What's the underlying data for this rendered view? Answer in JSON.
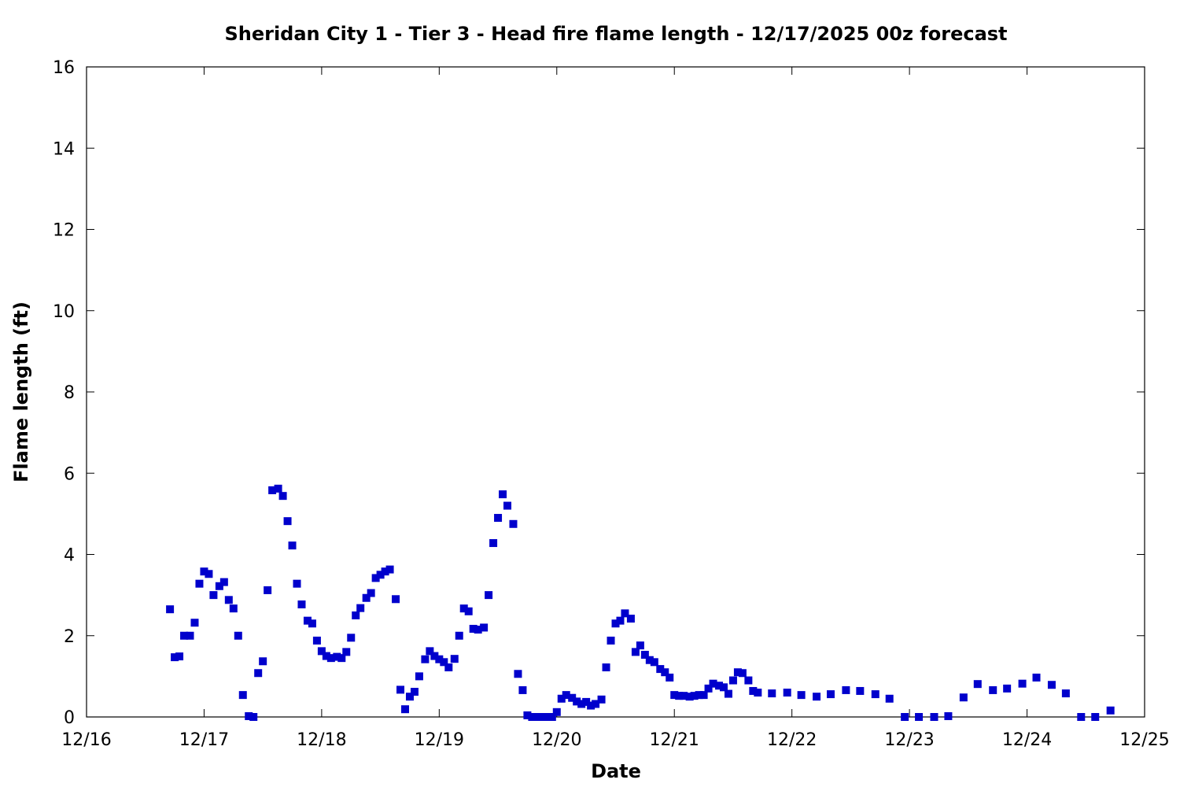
{
  "chart_data": {
    "type": "scatter",
    "title": "Sheridan City 1 - Tier 3 - Head fire flame length - 12/17/2025 00z forecast",
    "xlabel": "Date",
    "ylabel": "Flame length (ft)",
    "x_tick_labels": [
      "12/16",
      "12/17",
      "12/18",
      "12/19",
      "12/20",
      "12/21",
      "12/22",
      "12/23",
      "12/24",
      "12/25"
    ],
    "x_unit": "days after 12/16",
    "xlim": [
      0,
      9
    ],
    "ylim": [
      0,
      16
    ],
    "y_ticks": [
      0,
      2,
      4,
      6,
      8,
      10,
      12,
      14,
      16
    ],
    "grid": false,
    "marker_color": "#0000cc",
    "series": [
      {
        "points": [
          [
            0.71,
            2.65
          ],
          [
            0.75,
            1.47
          ],
          [
            0.79,
            1.49
          ],
          [
            0.83,
            2.0
          ],
          [
            0.88,
            2.0
          ],
          [
            0.92,
            2.32
          ],
          [
            0.96,
            3.28
          ],
          [
            1.0,
            3.58
          ],
          [
            1.04,
            3.52
          ],
          [
            1.08,
            3.0
          ],
          [
            1.13,
            3.22
          ],
          [
            1.17,
            3.32
          ],
          [
            1.21,
            2.88
          ],
          [
            1.25,
            2.67
          ],
          [
            1.29,
            2.0
          ],
          [
            1.33,
            0.54
          ],
          [
            1.38,
            0.02
          ],
          [
            1.42,
            0.0
          ],
          [
            1.46,
            1.08
          ],
          [
            1.5,
            1.37
          ],
          [
            1.54,
            3.12
          ],
          [
            1.58,
            5.58
          ],
          [
            1.63,
            5.62
          ],
          [
            1.67,
            5.44
          ],
          [
            1.71,
            4.82
          ],
          [
            1.75,
            4.22
          ],
          [
            1.79,
            3.28
          ],
          [
            1.83,
            2.77
          ],
          [
            1.88,
            2.37
          ],
          [
            1.92,
            2.3
          ],
          [
            1.96,
            1.88
          ],
          [
            2.0,
            1.62
          ],
          [
            2.04,
            1.5
          ],
          [
            2.08,
            1.45
          ],
          [
            2.13,
            1.48
          ],
          [
            2.17,
            1.45
          ],
          [
            2.21,
            1.6
          ],
          [
            2.25,
            1.95
          ],
          [
            2.29,
            2.5
          ],
          [
            2.33,
            2.68
          ],
          [
            2.38,
            2.93
          ],
          [
            2.42,
            3.05
          ],
          [
            2.46,
            3.42
          ],
          [
            2.5,
            3.5
          ],
          [
            2.54,
            3.58
          ],
          [
            2.58,
            3.63
          ],
          [
            2.63,
            2.9
          ],
          [
            2.67,
            0.67
          ],
          [
            2.71,
            0.19
          ],
          [
            2.75,
            0.5
          ],
          [
            2.79,
            0.62
          ],
          [
            2.83,
            1.0
          ],
          [
            2.88,
            1.42
          ],
          [
            2.92,
            1.62
          ],
          [
            2.96,
            1.5
          ],
          [
            3.0,
            1.42
          ],
          [
            3.04,
            1.35
          ],
          [
            3.08,
            1.22
          ],
          [
            3.13,
            1.43
          ],
          [
            3.17,
            2.0
          ],
          [
            3.21,
            2.67
          ],
          [
            3.25,
            2.6
          ],
          [
            3.29,
            2.17
          ],
          [
            3.33,
            2.15
          ],
          [
            3.38,
            2.2
          ],
          [
            3.42,
            3.0
          ],
          [
            3.46,
            4.28
          ],
          [
            3.5,
            4.9
          ],
          [
            3.54,
            5.48
          ],
          [
            3.58,
            5.2
          ],
          [
            3.63,
            4.75
          ],
          [
            3.67,
            1.06
          ],
          [
            3.71,
            0.66
          ],
          [
            3.75,
            0.04
          ],
          [
            3.79,
            0.0
          ],
          [
            3.83,
            0.0
          ],
          [
            3.88,
            0.0
          ],
          [
            3.92,
            0.0
          ],
          [
            3.96,
            0.0
          ],
          [
            4.0,
            0.12
          ],
          [
            4.04,
            0.45
          ],
          [
            4.08,
            0.54
          ],
          [
            4.13,
            0.47
          ],
          [
            4.17,
            0.38
          ],
          [
            4.21,
            0.32
          ],
          [
            4.25,
            0.37
          ],
          [
            4.29,
            0.28
          ],
          [
            4.33,
            0.32
          ],
          [
            4.38,
            0.43
          ],
          [
            4.42,
            1.22
          ],
          [
            4.46,
            1.88
          ],
          [
            4.5,
            2.3
          ],
          [
            4.54,
            2.37
          ],
          [
            4.58,
            2.55
          ],
          [
            4.63,
            2.42
          ],
          [
            4.67,
            1.6
          ],
          [
            4.71,
            1.76
          ],
          [
            4.75,
            1.53
          ],
          [
            4.79,
            1.4
          ],
          [
            4.83,
            1.35
          ],
          [
            4.88,
            1.18
          ],
          [
            4.92,
            1.1
          ],
          [
            4.96,
            0.97
          ],
          [
            5.0,
            0.54
          ],
          [
            5.04,
            0.52
          ],
          [
            5.08,
            0.52
          ],
          [
            5.13,
            0.5
          ],
          [
            5.17,
            0.52
          ],
          [
            5.21,
            0.54
          ],
          [
            5.25,
            0.54
          ],
          [
            5.29,
            0.7
          ],
          [
            5.33,
            0.82
          ],
          [
            5.38,
            0.77
          ],
          [
            5.42,
            0.73
          ],
          [
            5.46,
            0.57
          ],
          [
            5.5,
            0.9
          ],
          [
            5.54,
            1.1
          ],
          [
            5.58,
            1.08
          ],
          [
            5.63,
            0.9
          ],
          [
            5.67,
            0.64
          ],
          [
            5.71,
            0.6
          ],
          [
            5.83,
            0.58
          ],
          [
            5.96,
            0.6
          ],
          [
            6.08,
            0.54
          ],
          [
            6.21,
            0.5
          ],
          [
            6.33,
            0.56
          ],
          [
            6.46,
            0.66
          ],
          [
            6.58,
            0.64
          ],
          [
            6.71,
            0.56
          ],
          [
            6.83,
            0.45
          ],
          [
            6.96,
            0.0
          ],
          [
            7.08,
            0.0
          ],
          [
            7.21,
            0.0
          ],
          [
            7.33,
            0.02
          ],
          [
            7.46,
            0.48
          ],
          [
            7.58,
            0.81
          ],
          [
            7.71,
            0.66
          ],
          [
            7.83,
            0.7
          ],
          [
            7.96,
            0.82
          ],
          [
            8.08,
            0.97
          ],
          [
            8.21,
            0.79
          ],
          [
            8.33,
            0.58
          ],
          [
            8.46,
            0.0
          ],
          [
            8.58,
            0.0
          ],
          [
            8.71,
            0.16
          ]
        ]
      }
    ]
  }
}
